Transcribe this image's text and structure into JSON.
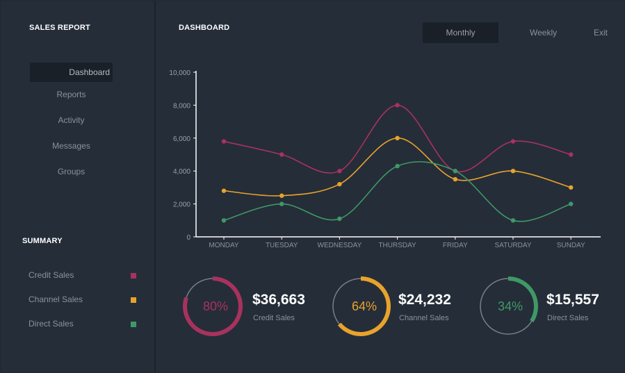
{
  "sidebar": {
    "title": "SALES REPORT",
    "nav": [
      {
        "label": "Dashboard",
        "active": true
      },
      {
        "label": "Reports",
        "active": false
      },
      {
        "label": "Activity",
        "active": false
      },
      {
        "label": "Messages",
        "active": false
      },
      {
        "label": "Groups",
        "active": false
      }
    ],
    "summary_title": "SUMMARY",
    "summary": [
      {
        "label": "Credit Sales",
        "color": "#a8325e"
      },
      {
        "label": "Channel Sales",
        "color": "#e8a32b"
      },
      {
        "label": "Direct Sales",
        "color": "#3f9966"
      }
    ]
  },
  "header": {
    "title": "DASHBOARD",
    "buttons": [
      {
        "label": "Monthly",
        "active": true
      },
      {
        "label": "Weekly",
        "active": false
      },
      {
        "label": "Exit",
        "active": false
      }
    ]
  },
  "chart_data": {
    "type": "line",
    "categories": [
      "MONDAY",
      "TUESDAY",
      "WEDNESDAY",
      "THURSDAY",
      "FRIDAY",
      "SATURDAY",
      "SUNDAY"
    ],
    "y_ticks": [
      "10,000",
      "8,000",
      "6,000",
      "4,000",
      "2,000",
      "0"
    ],
    "ylim": [
      0,
      10000
    ],
    "series": [
      {
        "values": [
          5800,
          5000,
          4000,
          8000,
          4000,
          5800,
          5000
        ],
        "color": "#a8325e"
      },
      {
        "values": [
          2800,
          2500,
          3200,
          6000,
          3500,
          4000,
          3000
        ],
        "color": "#e8a32b"
      },
      {
        "values": [
          1000,
          2000,
          1100,
          4300,
          4000,
          1000,
          2000
        ],
        "color": "#3f9966"
      }
    ],
    "grid": false
  },
  "summary_cards": [
    {
      "percent": "80%",
      "fraction": 0.8,
      "amount": "$36,663",
      "label": "Credit Sales",
      "color": "#a8325e"
    },
    {
      "percent": "64%",
      "fraction": 0.64,
      "amount": "$24,232",
      "label": "Channel Sales",
      "color": "#e8a32b"
    },
    {
      "percent": "34%",
      "fraction": 0.34,
      "amount": "$15,557",
      "label": "Direct Sales",
      "color": "#3f9966"
    }
  ]
}
